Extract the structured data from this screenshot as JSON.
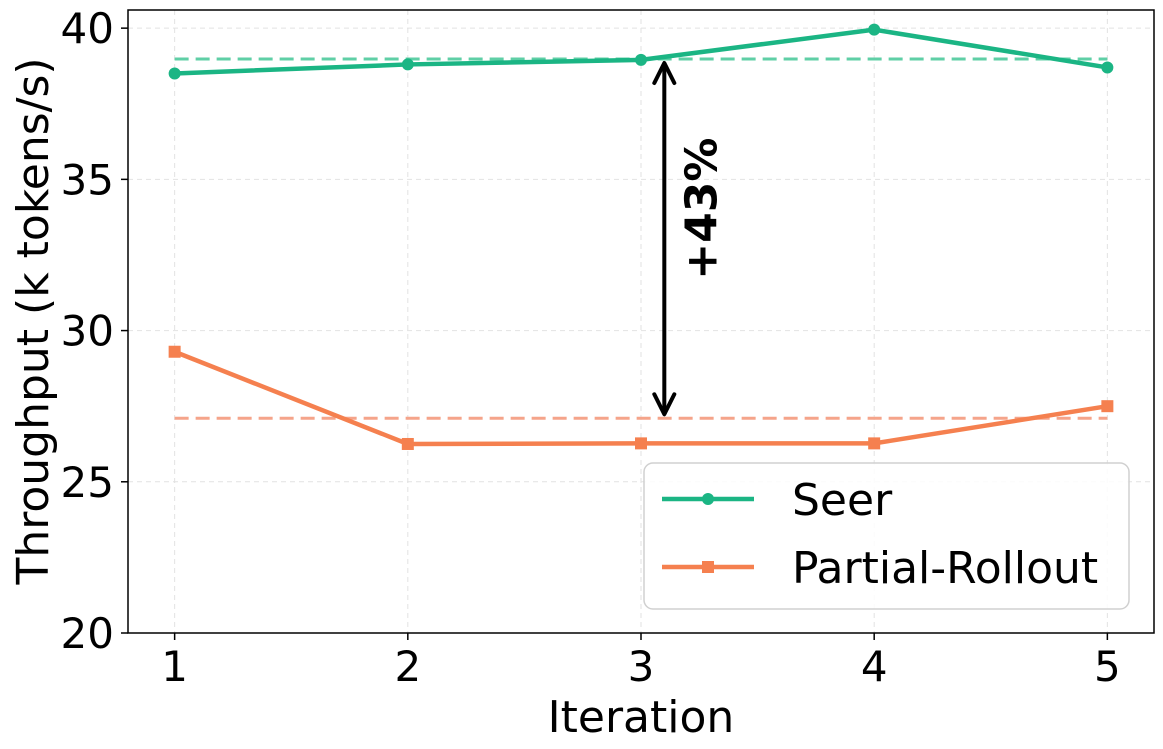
{
  "chart_data": {
    "type": "line",
    "x": [
      1,
      2,
      3,
      4,
      5
    ],
    "xticks": [
      "1",
      "2",
      "3",
      "4",
      "5"
    ],
    "xlim": [
      0.8,
      5.2
    ],
    "ylim": [
      20,
      40.6
    ],
    "yticks": [
      "20",
      "25",
      "30",
      "35",
      "40"
    ],
    "xlabel": "Iteration",
    "ylabel": "Throughput (k tokens/s)",
    "grid": true,
    "legend_position": "lower-right",
    "series": [
      {
        "name": "Seer",
        "values": [
          38.5,
          38.8,
          38.95,
          39.95,
          38.7
        ],
        "mean": 38.98,
        "color": "#1bb584",
        "mean_color": "#5fcfa6",
        "marker": "circle"
      },
      {
        "name": "Partial-Rollout",
        "values": [
          29.3,
          26.25,
          26.27,
          26.27,
          27.5
        ],
        "mean": 27.1,
        "color": "#f5804f",
        "mean_color": "#f5a48a",
        "marker": "square"
      }
    ],
    "annotation": {
      "text": "+43%",
      "x": 3.1,
      "from": 27.1,
      "to": 38.98
    }
  }
}
